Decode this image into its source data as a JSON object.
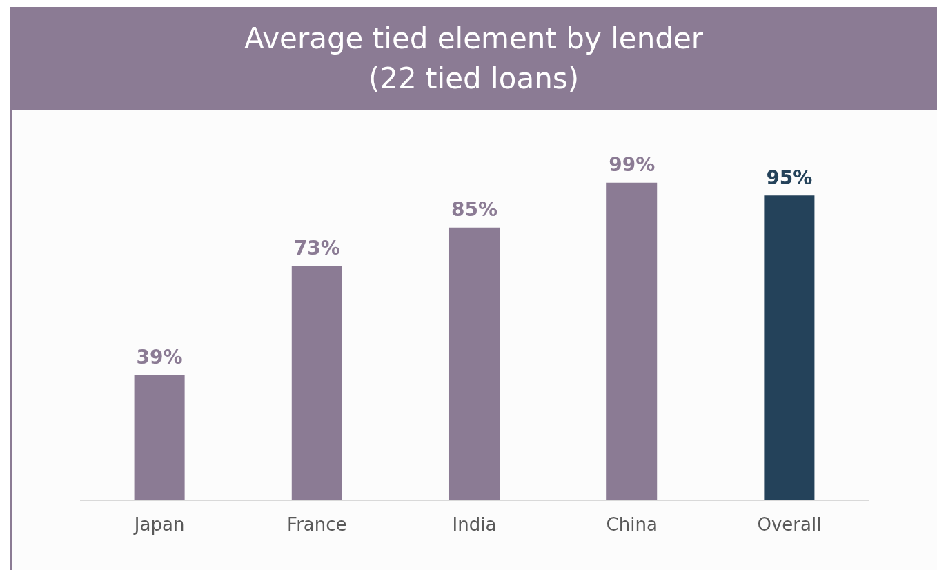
{
  "chart_data": {
    "type": "bar",
    "title": "Average tied element by lender\n(22 tied loans)",
    "categories": [
      "Japan",
      "France",
      "India",
      "China",
      "Overall"
    ],
    "values": [
      39,
      73,
      85,
      99,
      95
    ],
    "colors": [
      "#8b7b94",
      "#8b7b94",
      "#8b7b94",
      "#8b7b94",
      "#24425a"
    ],
    "value_labels": [
      "39%",
      "73%",
      "85%",
      "99%",
      "95%"
    ],
    "grid": false,
    "legend": false
  }
}
